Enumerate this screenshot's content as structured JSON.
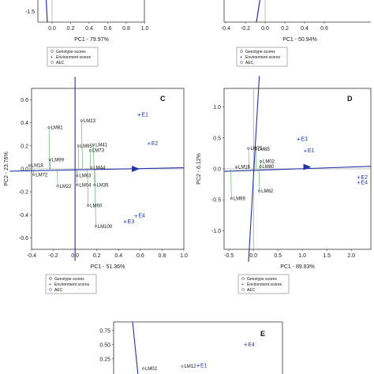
{
  "chart_data": [
    {
      "panel": "A",
      "type": "scatter",
      "xlabel": "PC1 - 79.97%",
      "xticks": [
        "0.0",
        "0.2",
        "0.4",
        "0.6",
        "0.8",
        "1.0"
      ],
      "yticks": [
        "-1.5"
      ],
      "legend": [
        "Genotype scores",
        "Environment scores",
        "AEC"
      ]
    },
    {
      "panel": "B",
      "type": "scatter",
      "xlabel": "PC1 - 50.94%",
      "xticks": [
        "-0.4",
        "-0.2",
        "0.0",
        "0.2",
        "0.4",
        "0.6"
      ],
      "legend": [
        "Genotype scores",
        "Environment scores",
        "AEC"
      ]
    },
    {
      "panel": "C",
      "type": "scatter",
      "label": "C",
      "xlabel": "PC1 - 51.36%",
      "ylabel": "PC2 - 23.76%",
      "xlim": [
        -0.4,
        1.0
      ],
      "ylim": [
        -0.7,
        0.7
      ],
      "xticks": [
        "-0.4",
        "-0.2",
        "0.0",
        "0.2",
        "0.4",
        "0.6",
        "0.8",
        "1.0"
      ],
      "yticks": [
        "0.6",
        "0.4",
        "0.2",
        "0.0",
        "-0.2",
        "-0.4",
        "-0.6"
      ],
      "genotypes": [
        {
          "name": "LM81",
          "x": -0.24,
          "y": 0.36
        },
        {
          "name": "LM23",
          "x": 0.06,
          "y": 0.42
        },
        {
          "name": "LM95",
          "x": 0.03,
          "y": 0.2
        },
        {
          "name": "LM41",
          "x": 0.17,
          "y": 0.21
        },
        {
          "name": "LM73",
          "x": 0.14,
          "y": 0.16
        },
        {
          "name": "LM99",
          "x": -0.23,
          "y": 0.08
        },
        {
          "name": "LM18",
          "x": -0.42,
          "y": 0.03
        },
        {
          "name": "LM72",
          "x": -0.38,
          "y": -0.05
        },
        {
          "name": "LM63",
          "x": 0.02,
          "y": -0.06
        },
        {
          "name": "LM22",
          "x": -0.16,
          "y": -0.15
        },
        {
          "name": "LM04",
          "x": 0.02,
          "y": -0.14
        },
        {
          "name": "LM44",
          "x": 0.15,
          "y": 0.01
        },
        {
          "name": "LM35",
          "x": 0.18,
          "y": -0.14
        },
        {
          "name": "LM60",
          "x": 0.12,
          "y": -0.32
        },
        {
          "name": "LM100",
          "x": 0.19,
          "y": -0.5
        }
      ],
      "environments": [
        {
          "name": "E1",
          "x": 0.59,
          "y": 0.47
        },
        {
          "name": "E2",
          "x": 0.68,
          "y": 0.22
        },
        {
          "name": "E3",
          "x": 0.46,
          "y": -0.46
        },
        {
          "name": "E4",
          "x": 0.56,
          "y": -0.41
        }
      ],
      "legend": [
        "Genotype scores",
        "Environment scores",
        "AEC"
      ]
    },
    {
      "panel": "D",
      "type": "scatter",
      "label": "D",
      "xlabel": "PC1 - 89.83%",
      "ylabel": "PC2 - 6.12%",
      "xlim": [
        -0.6,
        2.4
      ],
      "ylim": [
        -1.3,
        1.3
      ],
      "xticks": [
        "-0.5",
        "0.0",
        "0.5",
        "1.0",
        "1.5",
        "2.0"
      ],
      "yticks": [
        "1.0",
        "0.5",
        "0.0",
        "-0.5",
        "-1.0"
      ],
      "genotypes": [
        {
          "name": "LM75",
          "x": -0.1,
          "y": 0.33
        },
        {
          "name": "LM85",
          "x": 0.05,
          "y": 0.32
        },
        {
          "name": "LM16",
          "x": -0.35,
          "y": 0.03
        },
        {
          "name": "LM02",
          "x": 0.15,
          "y": 0.12
        },
        {
          "name": "LM80",
          "x": 0.14,
          "y": 0.04
        },
        {
          "name": "LM82",
          "x": 0.12,
          "y": -0.36
        },
        {
          "name": "LM69",
          "x": -0.45,
          "y": -0.48
        }
      ],
      "environments": [
        {
          "name": "E3",
          "x": 0.92,
          "y": 0.48
        },
        {
          "name": "E1",
          "x": 1.06,
          "y": 0.29
        },
        {
          "name": "E2",
          "x": 2.15,
          "y": -0.14
        },
        {
          "name": "E4",
          "x": 2.15,
          "y": -0.22
        }
      ],
      "legend": [
        "Genotype scores",
        "Environment scores",
        "AEC"
      ]
    },
    {
      "panel": "E",
      "type": "scatter",
      "label": "E",
      "yticks": [
        "0.75",
        "0.50",
        "0.25"
      ],
      "genotypes": [
        {
          "name": "LM02",
          "x": 0.08,
          "y": 0.08
        },
        {
          "name": "LM12",
          "x": 0.45,
          "y": 0.12
        }
      ],
      "environments": [
        {
          "name": "E1",
          "x": 0.6,
          "y": 0.13
        },
        {
          "name": "E4",
          "x": 1.05,
          "y": 0.5
        }
      ]
    }
  ]
}
